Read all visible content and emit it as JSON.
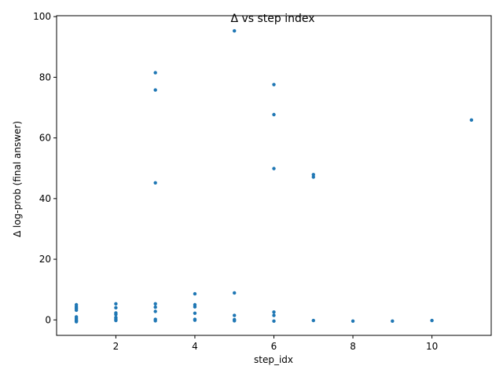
{
  "chart_data": {
    "type": "scatter",
    "title": "Δ vs step index",
    "xlabel": "step_idx",
    "ylabel": "Δ log-prob (final answer)",
    "xlim": [
      0.5,
      11.5
    ],
    "ylim": [
      -5.1,
      100.3
    ],
    "xticks": [
      2,
      4,
      6,
      8,
      10
    ],
    "yticks": [
      0,
      20,
      40,
      60,
      80,
      100
    ],
    "grid": false,
    "marker_color": "#1f77b4",
    "points": [
      {
        "x": 1,
        "y": 5.0
      },
      {
        "x": 1,
        "y": 4.3
      },
      {
        "x": 1,
        "y": 3.8
      },
      {
        "x": 1,
        "y": 3.2
      },
      {
        "x": 1,
        "y": 1.0
      },
      {
        "x": 1,
        "y": 0.5
      },
      {
        "x": 1,
        "y": 0.0
      },
      {
        "x": 1,
        "y": -0.3
      },
      {
        "x": 1,
        "y": -0.6
      },
      {
        "x": 2,
        "y": 5.3
      },
      {
        "x": 2,
        "y": 4.0
      },
      {
        "x": 2,
        "y": 2.3
      },
      {
        "x": 2,
        "y": 1.8
      },
      {
        "x": 2,
        "y": 0.8
      },
      {
        "x": 2,
        "y": 0.3
      },
      {
        "x": 2,
        "y": -0.2
      },
      {
        "x": 3,
        "y": 81.5
      },
      {
        "x": 3,
        "y": 75.8
      },
      {
        "x": 3,
        "y": 45.2
      },
      {
        "x": 3,
        "y": 5.3
      },
      {
        "x": 3,
        "y": 4.2
      },
      {
        "x": 3,
        "y": 2.8
      },
      {
        "x": 3,
        "y": 0.2
      },
      {
        "x": 3,
        "y": -0.3
      },
      {
        "x": 4,
        "y": 8.6
      },
      {
        "x": 4,
        "y": 5.0
      },
      {
        "x": 4,
        "y": 4.3
      },
      {
        "x": 4,
        "y": 2.2
      },
      {
        "x": 4,
        "y": 0.2
      },
      {
        "x": 4,
        "y": -0.1
      },
      {
        "x": 5,
        "y": 95.3
      },
      {
        "x": 5,
        "y": 8.9
      },
      {
        "x": 5,
        "y": 1.5
      },
      {
        "x": 5,
        "y": 0.1
      },
      {
        "x": 5,
        "y": -0.3
      },
      {
        "x": 6,
        "y": 77.6
      },
      {
        "x": 6,
        "y": 67.7
      },
      {
        "x": 6,
        "y": 49.9
      },
      {
        "x": 6,
        "y": 2.6
      },
      {
        "x": 6,
        "y": 1.5
      },
      {
        "x": 6,
        "y": -0.4
      },
      {
        "x": 7,
        "y": 47.9
      },
      {
        "x": 7,
        "y": 47.1
      },
      {
        "x": 7,
        "y": -0.2
      },
      {
        "x": 8,
        "y": -0.4
      },
      {
        "x": 9,
        "y": -0.4
      },
      {
        "x": 10,
        "y": -0.2
      },
      {
        "x": 11,
        "y": 65.9
      }
    ]
  }
}
